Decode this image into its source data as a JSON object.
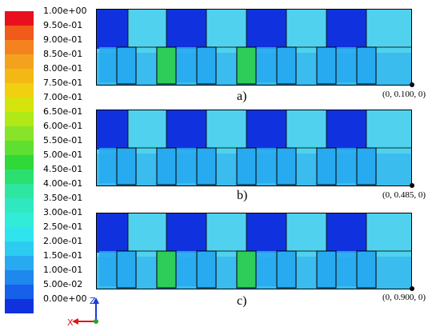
{
  "legend": {
    "labels": [
      "1.00e+00",
      "9.50e-01",
      "9.00e-01",
      "8.50e-01",
      "8.00e-01",
      "7.50e-01",
      "7.00e-01",
      "6.50e-01",
      "6.00e-01",
      "5.50e-01",
      "5.00e-01",
      "4.50e-01",
      "4.00e-01",
      "3.50e-01",
      "3.00e-01",
      "2.50e-01",
      "2.00e-01",
      "1.50e-01",
      "1.00e-01",
      "5.00e-02",
      "0.00e+00"
    ],
    "colors": [
      "#e8101e",
      "#f05a1a",
      "#f4821e",
      "#f4a21e",
      "#f4b814",
      "#f0d010",
      "#d4e40c",
      "#b0e818",
      "#88e428",
      "#5ee030",
      "#30d838",
      "#2ce070",
      "#2ee6a0",
      "#30e8c0",
      "#30ecd8",
      "#30e4ee",
      "#2cccf0",
      "#28aaf0",
      "#1e88ee",
      "#1660ea",
      "#1032de"
    ]
  },
  "panels": [
    {
      "label": "a)",
      "coord": "(0, 0.100, 0)"
    },
    {
      "label": "b)",
      "coord": "(0, 0.485, 0)"
    },
    {
      "label": "c)",
      "coord": "(0, 0.900, 0)"
    }
  ],
  "axes": {
    "z": "Z",
    "x": "X"
  },
  "colors": {
    "deep_blue": "#1032de",
    "light_cyan": "#50d2ee",
    "mid_blue": "#28aaf0",
    "green": "#2ecc58",
    "outline": "#000000"
  }
}
